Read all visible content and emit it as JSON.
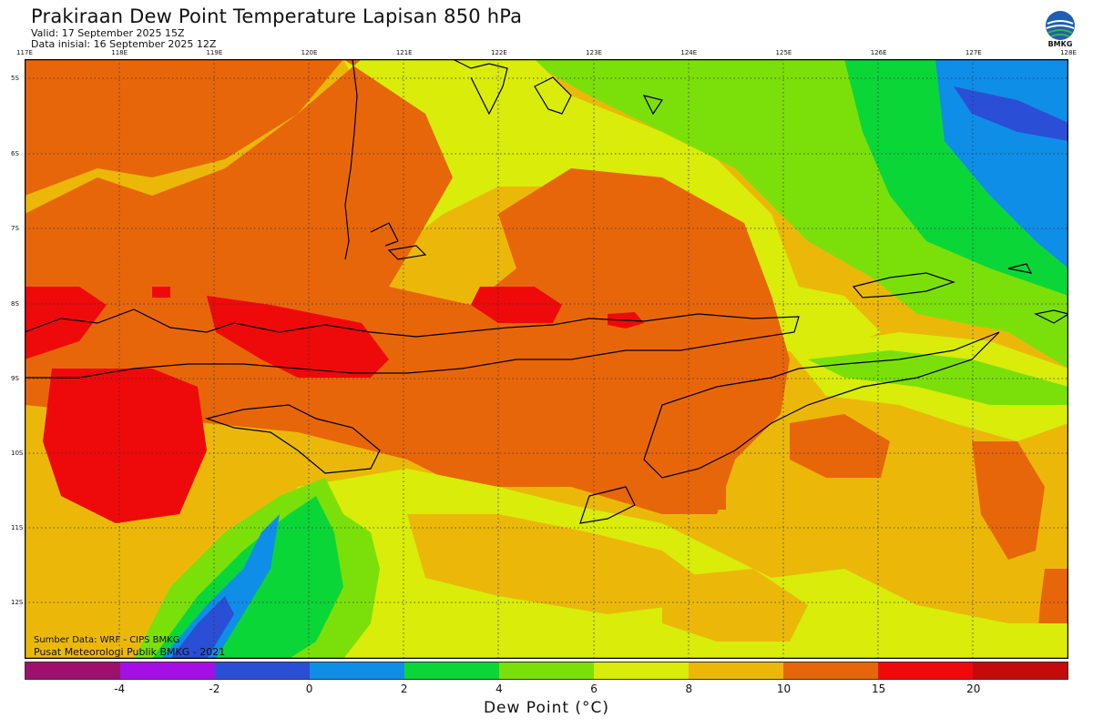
{
  "header": {
    "title": "Prakiraan Dew Point Temperature Lapisan 850 hPa",
    "valid": "Valid: 17 September 2025 15Z",
    "initial": "Data inisial: 16 September 2025 12Z",
    "logo_text": "BMKG"
  },
  "axes": {
    "lon_labels": [
      "117E",
      "118E",
      "119E",
      "120E",
      "121E",
      "122E",
      "123E",
      "124E",
      "125E",
      "126E",
      "127E",
      "128E"
    ],
    "lat_labels": [
      "5S",
      "6S",
      "7S",
      "8S",
      "9S",
      "10S",
      "11S",
      "12S"
    ]
  },
  "credits": {
    "source": "Sumber Data: WRF - CIPS BMKG",
    "org": "Pusat Meteorologi Publik BMKG - 2021"
  },
  "colorbar": {
    "colors": [
      "#9e0f6e",
      "#a50fe6",
      "#2a4fd6",
      "#0f8ee8",
      "#0bd638",
      "#7be00a",
      "#d9ec0a",
      "#ebb80a",
      "#e8660a",
      "#ee0a0a",
      "#c40a0a"
    ],
    "labels": [
      "-4",
      "-2",
      "0",
      "2",
      "4",
      "6",
      "8",
      "10",
      "15",
      "20"
    ],
    "xlabel": "Dew Point (°C)"
  }
}
